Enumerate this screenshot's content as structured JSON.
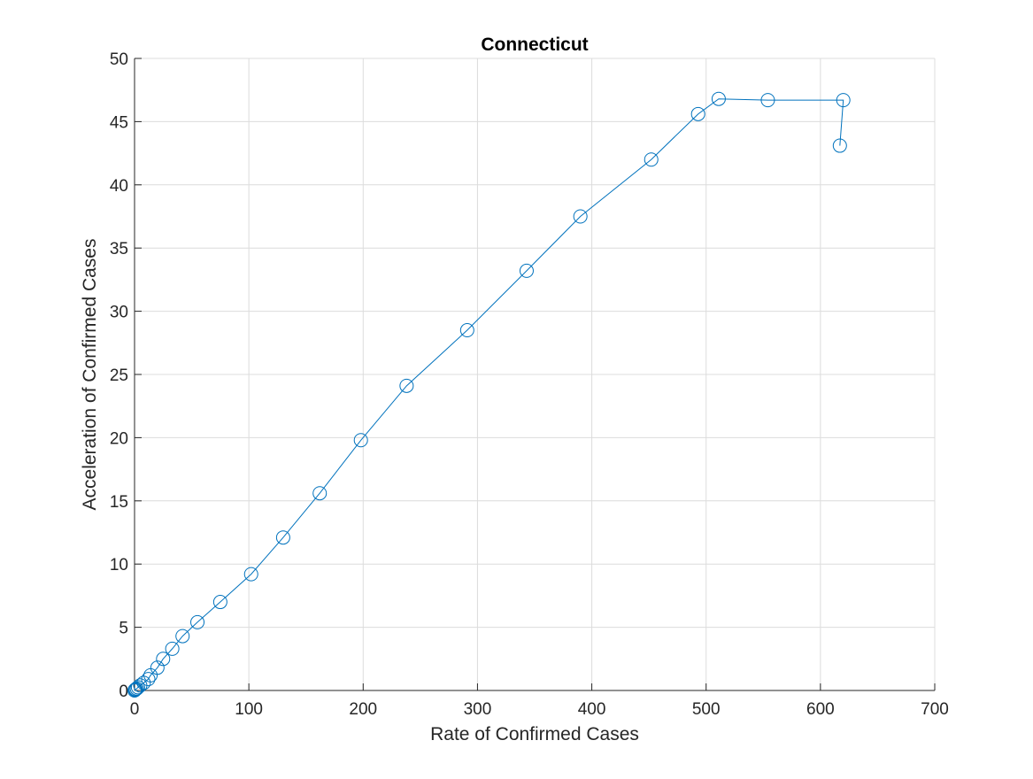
{
  "chart_data": {
    "type": "line",
    "title": "Connecticut",
    "xlabel": "Rate of Confirmed Cases",
    "ylabel": "Acceleration of Confirmed Cases",
    "xlim": [
      0,
      700
    ],
    "ylim": [
      0,
      50
    ],
    "xticks": [
      0,
      100,
      200,
      300,
      400,
      500,
      600,
      700
    ],
    "yticks": [
      0,
      5,
      10,
      15,
      20,
      25,
      30,
      35,
      40,
      45,
      50
    ],
    "grid": true,
    "marker": "circle",
    "series": [
      {
        "color": "#0072BD",
        "points": [
          [
            0,
            0
          ],
          [
            0.5,
            0.05
          ],
          [
            1,
            0.1
          ],
          [
            2,
            0.15
          ],
          [
            3,
            0.25
          ],
          [
            5,
            0.4
          ],
          [
            8,
            0.6
          ],
          [
            12,
            0.9
          ],
          [
            14,
            1.2
          ],
          [
            20,
            1.8
          ],
          [
            25,
            2.5
          ],
          [
            33,
            3.3
          ],
          [
            42,
            4.3
          ],
          [
            55,
            5.4
          ],
          [
            75,
            7.0
          ],
          [
            102,
            9.2
          ],
          [
            130,
            12.1
          ],
          [
            162,
            15.6
          ],
          [
            198,
            19.8
          ],
          [
            238,
            24.1
          ],
          [
            291,
            28.5
          ],
          [
            343,
            33.2
          ],
          [
            390,
            37.5
          ],
          [
            452,
            42.0
          ],
          [
            493,
            45.6
          ],
          [
            511,
            46.8
          ],
          [
            554,
            46.7
          ],
          [
            620,
            46.7
          ],
          [
            617,
            43.1
          ]
        ]
      }
    ]
  }
}
